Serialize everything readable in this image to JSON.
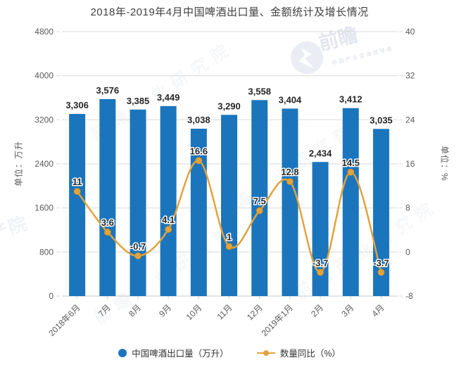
{
  "title": "2018年-2019年4月中国啤酒出口量、金额统计及增长情况",
  "chart_data": {
    "type": "bar+line",
    "categories": [
      "2018年6月",
      "7月",
      "8月",
      "9月",
      "10月",
      "11月",
      "12月",
      "2019年1月",
      "2月",
      "3月",
      "4月"
    ],
    "series": [
      {
        "name": "中国啤酒出口量（万升）",
        "type": "bar",
        "axis": "left",
        "values": [
          3306,
          3576,
          3385,
          3449,
          3038,
          3290,
          3558,
          3404,
          2434,
          3412,
          3035
        ],
        "labels": [
          "3,306",
          "3,576",
          "3,385",
          "3,449",
          "3,038",
          "3,290",
          "3,558",
          "3,404",
          "2,434",
          "3,412",
          "3,035"
        ]
      },
      {
        "name": "数量同比（%）",
        "type": "line",
        "axis": "right",
        "values": [
          11,
          3.6,
          -0.7,
          4.1,
          16.6,
          1,
          7.5,
          12.8,
          -3.7,
          14.5,
          -3.7
        ],
        "labels": [
          "11",
          "3.6",
          "-0.7",
          "4.1",
          "16.6",
          "1",
          "7.5",
          "12.8",
          "-3.7",
          "14.5",
          "-3.7"
        ]
      }
    ],
    "left_axis": {
      "title": "单位：万升",
      "min": 0,
      "max": 4800,
      "ticks": [
        4800,
        4000,
        3200,
        2400,
        1600,
        800,
        0
      ]
    },
    "right_axis": {
      "title": "单位：%",
      "min": -8,
      "max": 40,
      "ticks": [
        40,
        32,
        24,
        16,
        8,
        0,
        -8
      ]
    },
    "grid": true,
    "legend_position": "bottom"
  },
  "legend": {
    "items": [
      {
        "label": "中国啤酒出口量（万升）",
        "marker": "circle",
        "color": "#1b75bc"
      },
      {
        "label": "数量同比（%）",
        "marker": "line-dot",
        "color": "#e2a33d"
      }
    ]
  },
  "watermark": {
    "brand": "前瞻",
    "tagline": "中国产业咨询领导者",
    "diagonal": "前瞻产业研究院",
    "corner": "产院"
  },
  "colors": {
    "bar": "#1b75bc",
    "line": "#e2a33d",
    "grid": "#d9d9d9",
    "axis_line": "#c9c9c9",
    "axis_text": "#595959",
    "value_label": "#262626",
    "title_text": "#404040"
  }
}
